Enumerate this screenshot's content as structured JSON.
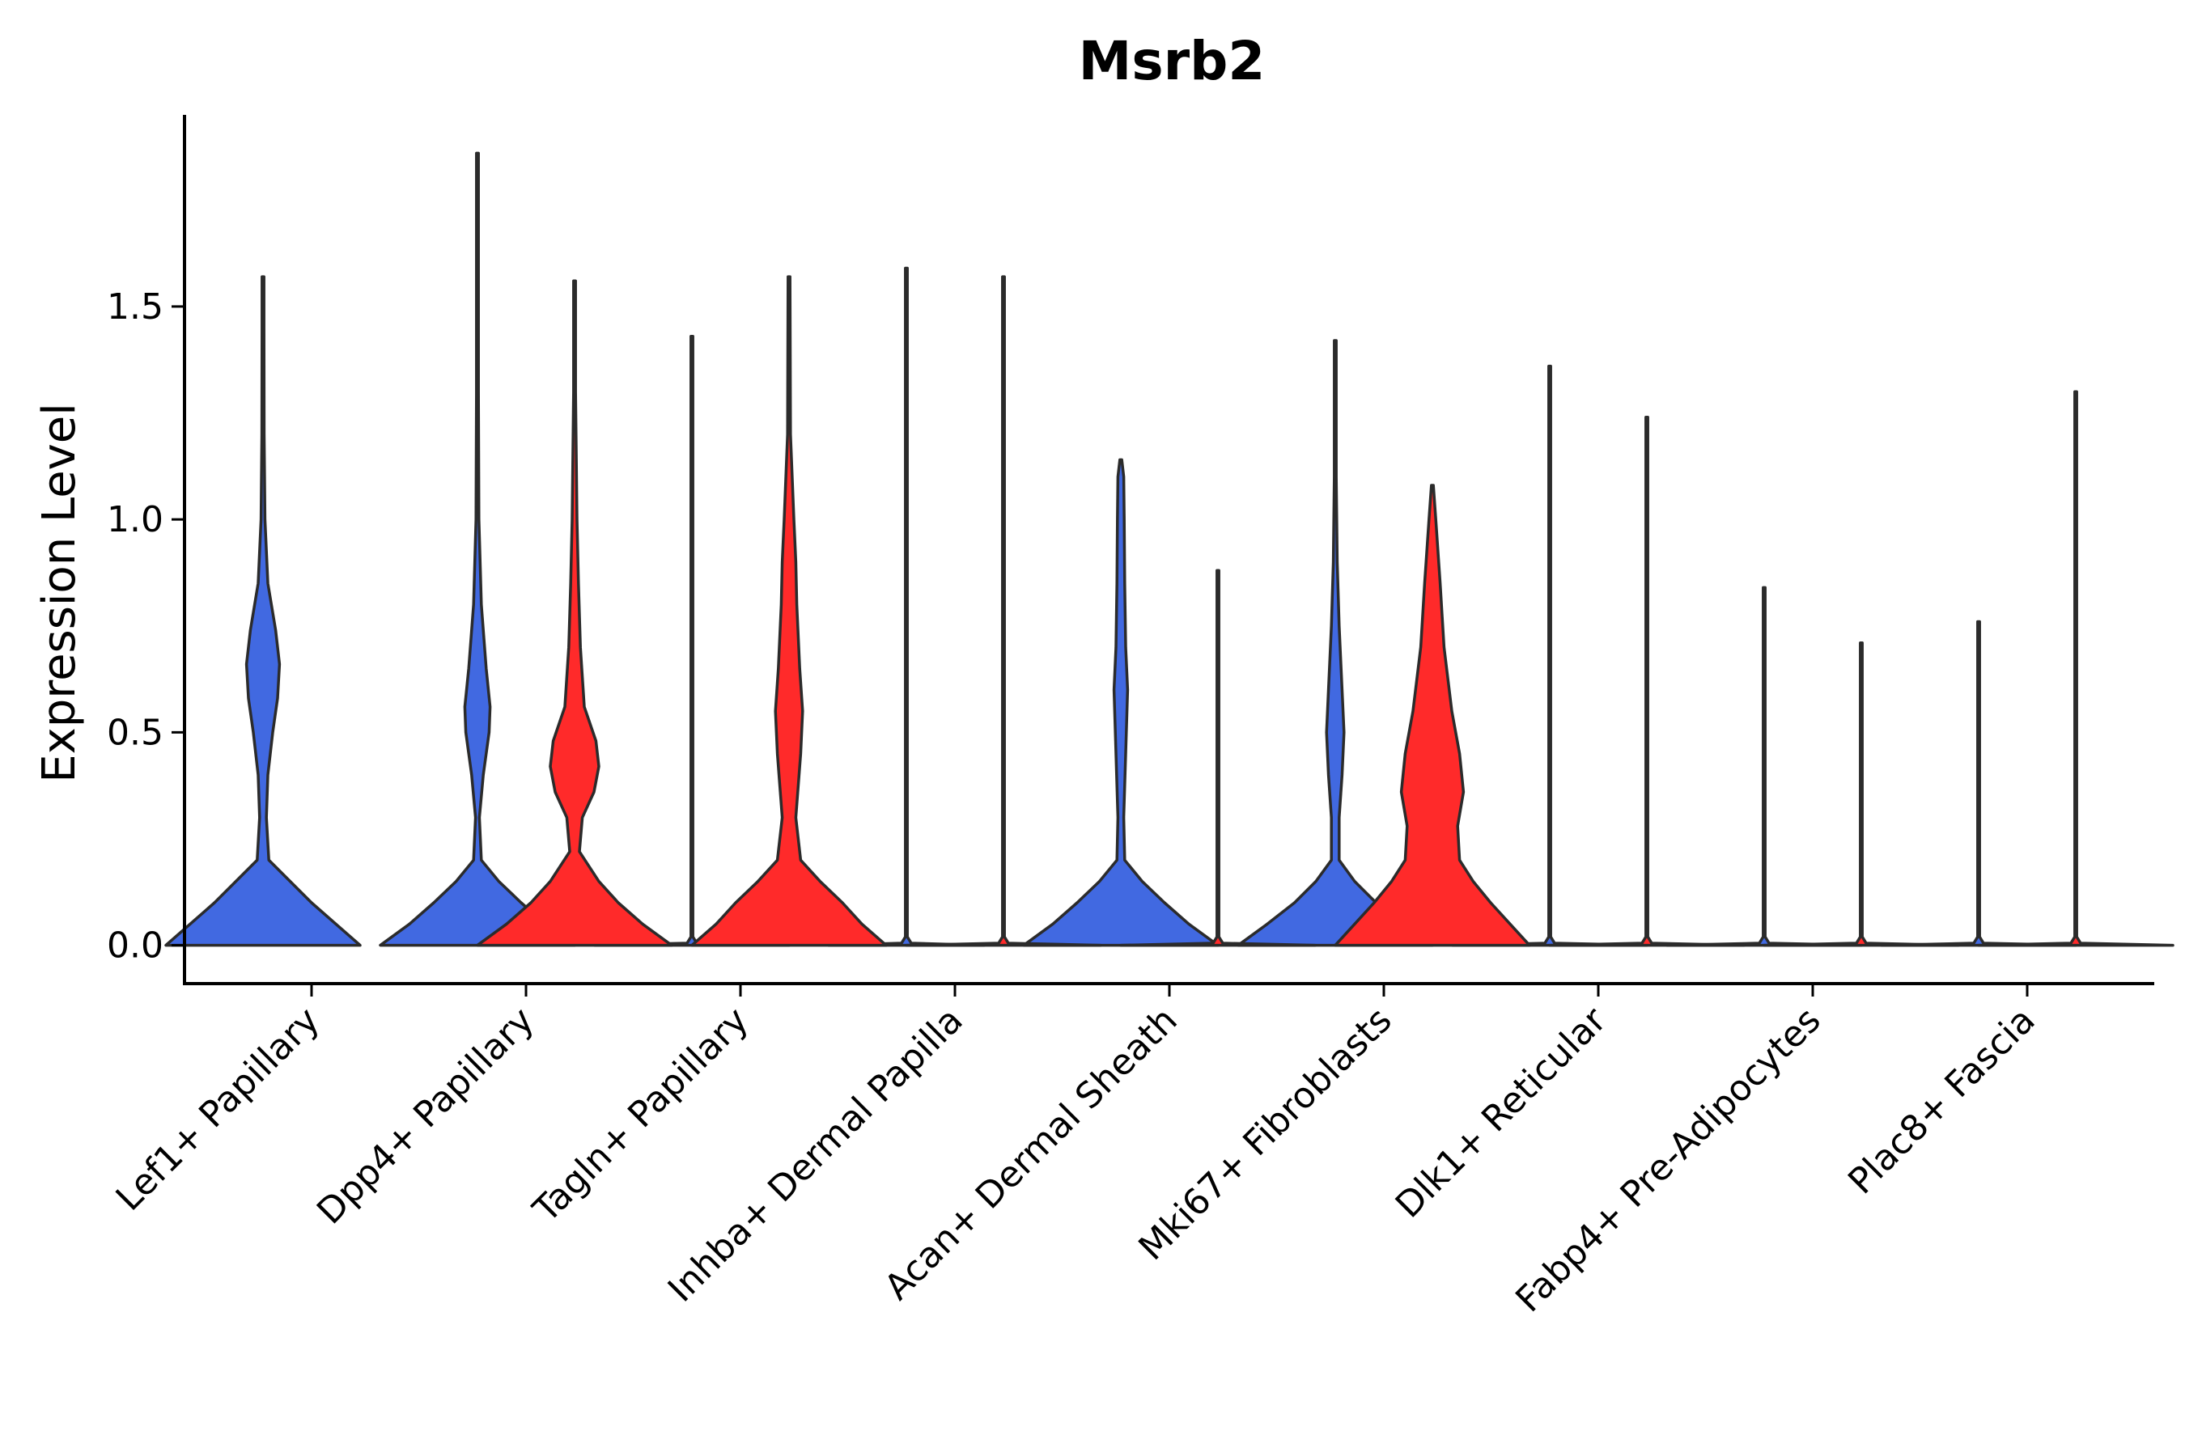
{
  "chart_data": {
    "type": "violin",
    "title": "Msrb2",
    "xlabel": "",
    "ylabel": "Expression Level",
    "ylim": [
      -0.09,
      1.95
    ],
    "yticks": [
      0.0,
      0.5,
      1.0,
      1.5
    ],
    "ytick_labels": [
      "0.0",
      "0.5",
      "1.0",
      "1.5"
    ],
    "grid": false,
    "legend": "none",
    "colors": {
      "blue": "#4169E1",
      "red": "#FF2A2A"
    },
    "categories": [
      "Lef1+ Papillary",
      "Dpp4+ Papillary",
      "Tagln+ Papillary",
      "Inhba+ Dermal Papilla",
      "Acan+ Dermal Sheath",
      "Mki67+ Fibroblasts",
      "Dlk1+ Reticular",
      "Fabp4+ Pre-Adipocytes",
      "Plac8+ Fascia"
    ],
    "series": [
      {
        "name": "group-blue",
        "color": "#4169E1",
        "violins": [
          {
            "category": "Lef1+ Papillary",
            "max": 1.57,
            "profile": [
              [
                0.0,
                1.0
              ],
              [
                0.05,
                0.75
              ],
              [
                0.1,
                0.5
              ],
              [
                0.15,
                0.28
              ],
              [
                0.2,
                0.06
              ],
              [
                0.3,
                0.035
              ],
              [
                0.4,
                0.05
              ],
              [
                0.5,
                0.1
              ],
              [
                0.58,
                0.15
              ],
              [
                0.66,
                0.17
              ],
              [
                0.74,
                0.13
              ],
              [
                0.85,
                0.05
              ],
              [
                1.0,
                0.02
              ],
              [
                1.2,
                0.012
              ],
              [
                1.45,
                0.006
              ],
              [
                1.57,
                0
              ]
            ]
          },
          {
            "category": "Dpp4+ Papillary",
            "max": 1.86,
            "profile": [
              [
                0.0,
                1.0
              ],
              [
                0.05,
                0.7
              ],
              [
                0.1,
                0.45
              ],
              [
                0.15,
                0.22
              ],
              [
                0.2,
                0.04
              ],
              [
                0.3,
                0.02
              ],
              [
                0.4,
                0.06
              ],
              [
                0.5,
                0.12
              ],
              [
                0.56,
                0.13
              ],
              [
                0.65,
                0.09
              ],
              [
                0.8,
                0.04
              ],
              [
                1.0,
                0.015
              ],
              [
                1.3,
                0.008
              ],
              [
                1.6,
                0.004
              ],
              [
                1.86,
                0
              ]
            ]
          },
          {
            "category": "Tagln+ Papillary",
            "max": 1.43,
            "profile": [
              [
                0.0,
                1.0
              ],
              [
                0.005,
                0.05
              ],
              [
                0.02,
                0.008
              ],
              [
                1.0,
                0.005
              ],
              [
                1.43,
                0
              ]
            ]
          },
          {
            "category": "Inhba+ Dermal Papilla",
            "max": 1.59,
            "profile": [
              [
                0.0,
                0.8
              ],
              [
                0.005,
                0.05
              ],
              [
                0.02,
                0.008
              ],
              [
                1.0,
                0.005
              ],
              [
                1.59,
                0
              ]
            ]
          },
          {
            "category": "Acan+ Dermal Sheath",
            "max": 1.14,
            "profile": [
              [
                0.0,
                1.0
              ],
              [
                0.05,
                0.7
              ],
              [
                0.1,
                0.45
              ],
              [
                0.15,
                0.22
              ],
              [
                0.2,
                0.04
              ],
              [
                0.3,
                0.03
              ],
              [
                0.45,
                0.05
              ],
              [
                0.6,
                0.07
              ],
              [
                0.7,
                0.05
              ],
              [
                0.85,
                0.04
              ],
              [
                1.0,
                0.035
              ],
              [
                1.1,
                0.03
              ],
              [
                1.14,
                0
              ]
            ]
          },
          {
            "category": "Mki67+ Fibroblasts",
            "max": 1.42,
            "profile": [
              [
                0.0,
                1.0
              ],
              [
                0.05,
                0.7
              ],
              [
                0.1,
                0.42
              ],
              [
                0.15,
                0.2
              ],
              [
                0.2,
                0.04
              ],
              [
                0.3,
                0.04
              ],
              [
                0.4,
                0.07
              ],
              [
                0.5,
                0.09
              ],
              [
                0.6,
                0.07
              ],
              [
                0.75,
                0.04
              ],
              [
                0.9,
                0.02
              ],
              [
                1.1,
                0.01
              ],
              [
                1.42,
                0
              ]
            ]
          },
          {
            "category": "Dlk1+ Reticular",
            "max": 1.36,
            "profile": [
              [
                0.0,
                1.0
              ],
              [
                0.005,
                0.05
              ],
              [
                0.02,
                0.008
              ],
              [
                1.0,
                0.005
              ],
              [
                1.36,
                0
              ]
            ]
          },
          {
            "category": "Fabp4+ Pre-Adipocytes",
            "max": 0.84,
            "profile": [
              [
                0.0,
                1.0
              ],
              [
                0.005,
                0.05
              ],
              [
                0.02,
                0.008
              ],
              [
                0.6,
                0.005
              ],
              [
                0.84,
                0
              ]
            ]
          },
          {
            "category": "Plac8+ Fascia",
            "max": 0.76,
            "profile": [
              [
                0.0,
                1.0
              ],
              [
                0.005,
                0.05
              ],
              [
                0.02,
                0.008
              ],
              [
                0.6,
                0.005
              ],
              [
                0.76,
                0
              ]
            ]
          }
        ]
      },
      {
        "name": "group-red",
        "color": "#FF2A2A",
        "violins": [
          {
            "category": "Dpp4+ Papillary",
            "max": 1.56,
            "profile": [
              [
                0.0,
                1.0
              ],
              [
                0.05,
                0.7
              ],
              [
                0.1,
                0.45
              ],
              [
                0.15,
                0.25
              ],
              [
                0.22,
                0.05
              ],
              [
                0.3,
                0.08
              ],
              [
                0.36,
                0.2
              ],
              [
                0.42,
                0.25
              ],
              [
                0.48,
                0.22
              ],
              [
                0.56,
                0.1
              ],
              [
                0.7,
                0.06
              ],
              [
                0.85,
                0.04
              ],
              [
                1.0,
                0.025
              ],
              [
                1.3,
                0.01
              ],
              [
                1.56,
                0
              ]
            ]
          },
          {
            "category": "Tagln+ Papillary",
            "max": 1.57,
            "profile": [
              [
                0.0,
                1.0
              ],
              [
                0.05,
                0.75
              ],
              [
                0.1,
                0.55
              ],
              [
                0.15,
                0.32
              ],
              [
                0.2,
                0.12
              ],
              [
                0.3,
                0.07
              ],
              [
                0.45,
                0.12
              ],
              [
                0.55,
                0.14
              ],
              [
                0.65,
                0.11
              ],
              [
                0.8,
                0.08
              ],
              [
                0.9,
                0.07
              ],
              [
                1.0,
                0.05
              ],
              [
                1.2,
                0.015
              ],
              [
                1.57,
                0
              ]
            ]
          },
          {
            "category": "Inhba+ Dermal Papilla",
            "max": 1.57,
            "profile": [
              [
                0.0,
                1.0
              ],
              [
                0.005,
                0.05
              ],
              [
                0.02,
                0.008
              ],
              [
                1.0,
                0.005
              ],
              [
                1.57,
                0
              ]
            ]
          },
          {
            "category": "Acan+ Dermal Sheath",
            "max": 0.88,
            "profile": [
              [
                0.0,
                1.0
              ],
              [
                0.005,
                0.05
              ],
              [
                0.02,
                0.008
              ],
              [
                0.6,
                0.005
              ],
              [
                0.88,
                0
              ]
            ]
          },
          {
            "category": "Mki67+ Fibroblasts",
            "max": 1.08,
            "profile": [
              [
                0.0,
                1.0
              ],
              [
                0.05,
                0.8
              ],
              [
                0.1,
                0.6
              ],
              [
                0.15,
                0.42
              ],
              [
                0.2,
                0.28
              ],
              [
                0.28,
                0.26
              ],
              [
                0.36,
                0.32
              ],
              [
                0.45,
                0.28
              ],
              [
                0.55,
                0.2
              ],
              [
                0.7,
                0.12
              ],
              [
                0.85,
                0.08
              ],
              [
                1.0,
                0.035
              ],
              [
                1.08,
                0
              ]
            ]
          },
          {
            "category": "Dlk1+ Reticular",
            "max": 1.24,
            "profile": [
              [
                0.0,
                1.0
              ],
              [
                0.005,
                0.05
              ],
              [
                0.02,
                0.008
              ],
              [
                1.0,
                0.005
              ],
              [
                1.24,
                0
              ]
            ]
          },
          {
            "category": "Fabp4+ Pre-Adipocytes",
            "max": 0.71,
            "profile": [
              [
                0.0,
                1.0
              ],
              [
                0.005,
                0.05
              ],
              [
                0.02,
                0.008
              ],
              [
                0.5,
                0.005
              ],
              [
                0.71,
                0
              ]
            ]
          },
          {
            "category": "Plac8+ Fascia",
            "max": 1.3,
            "profile": [
              [
                0.0,
                1.0
              ],
              [
                0.005,
                0.05
              ],
              [
                0.02,
                0.008
              ],
              [
                1.0,
                0.005
              ],
              [
                1.3,
                0
              ]
            ]
          }
        ]
      }
    ]
  }
}
